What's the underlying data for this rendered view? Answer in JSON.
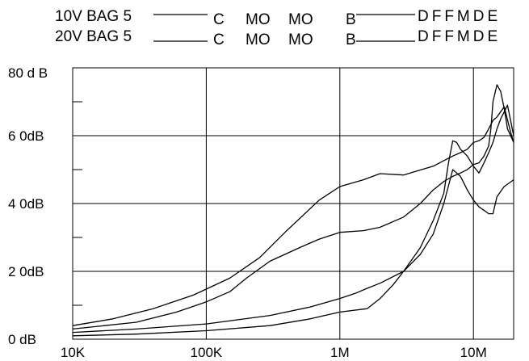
{
  "chart_data": {
    "type": "line",
    "title": "",
    "xlabel": "",
    "ylabel": "",
    "x_scale": "log",
    "x_range": [
      10000,
      20000000
    ],
    "y_range": [
      0,
      80
    ],
    "grid": true,
    "x_ticks": [
      {
        "label": "10K",
        "value": 10000
      },
      {
        "label": "100K",
        "value": 100000
      },
      {
        "label": "1M",
        "value": 1000000
      },
      {
        "label": "10M",
        "value": 10000000
      }
    ],
    "y_ticks": [
      {
        "label": "0 dB",
        "value": 0
      },
      {
        "label": "2 0dB",
        "value": 20
      },
      {
        "label": "4 0dB",
        "value": 40
      },
      {
        "label": "6 0dB",
        "value": 60
      },
      {
        "label": "80 d B",
        "value": 80
      }
    ],
    "legend": [
      {
        "left": "10V BAG 5",
        "labels": [
          "C",
          "MO",
          "MO",
          "B",
          "DFFMDE"
        ]
      },
      {
        "left": "20V BAG 5",
        "labels": [
          "C",
          "MO",
          "MO",
          "B",
          "DFFMDE"
        ]
      }
    ],
    "series": [
      {
        "x": [
          10000,
          20000,
          40000,
          80000,
          150000,
          250000,
          400000,
          700000,
          1000000,
          1500000,
          2000000,
          3000000,
          5000000,
          7000000,
          8000000,
          9000000,
          10000000,
          11000000,
          12000000,
          13000000,
          14000000,
          15000000,
          17000000,
          19000000,
          20000000
        ],
        "values": [
          4,
          6,
          9,
          13,
          18,
          24,
          32,
          41,
          45,
          47,
          48.8,
          48.4,
          51,
          54,
          55,
          56,
          58,
          58.5,
          59.5,
          62,
          64.5,
          65.5,
          68.5,
          61,
          58
        ]
      },
      {
        "x": [
          10000,
          30000,
          60000,
          100000,
          150000,
          200000,
          300000,
          500000,
          700000,
          1000000,
          1500000,
          2000000,
          3000000,
          4000000,
          5000000,
          6000000,
          7000000,
          8000000,
          9000000,
          10000000,
          11000000,
          12000000,
          13000000,
          13500000,
          14000000,
          15000000,
          16000000,
          17000000,
          18000000,
          20000000
        ],
        "values": [
          3,
          5,
          8,
          11,
          14,
          18,
          23,
          27,
          29.5,
          31.5,
          32,
          33,
          36,
          40,
          44,
          46.5,
          48,
          49,
          50,
          51.5,
          52,
          54,
          57,
          62,
          70,
          75,
          73,
          68,
          62,
          58
        ]
      },
      {
        "x": [
          10000,
          30000,
          100000,
          300000,
          600000,
          1000000,
          1300000,
          1600000,
          2000000,
          3000000,
          4000000,
          5000000,
          6000000,
          7000000,
          8000000,
          9000000,
          10000000,
          11000000,
          12000000,
          13000000,
          14000000,
          15000000,
          17000000,
          20000000
        ],
        "values": [
          2,
          3,
          4.5,
          7,
          9.5,
          12,
          13.5,
          15,
          16.5,
          20,
          25,
          31,
          40,
          50,
          48,
          44,
          41,
          39,
          38,
          37,
          37,
          42,
          45,
          47
        ]
      },
      {
        "x": [
          10000,
          30000,
          100000,
          300000,
          600000,
          1000000,
          1600000,
          2000000,
          2500000,
          3000000,
          4000000,
          5000000,
          6000000,
          6500000,
          7000000,
          7500000,
          8000000,
          9000000,
          10000000,
          11000000,
          12000000,
          13000000,
          14000000,
          15000000,
          16000000,
          17000000,
          18000000,
          20000000
        ],
        "values": [
          1,
          1.5,
          2.5,
          4,
          6,
          8,
          9,
          12,
          16,
          20,
          27,
          35,
          43,
          52,
          58.5,
          58,
          56,
          54,
          51,
          49,
          52,
          55,
          58,
          62,
          65,
          67,
          69,
          60
        ]
      }
    ]
  }
}
